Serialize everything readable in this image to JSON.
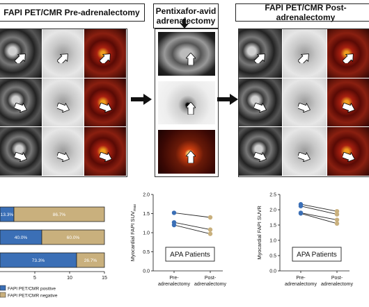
{
  "titles": {
    "pre": "FAPI PET/CMR Pre-adrenalectomy",
    "mid": "Pentixafor-avid adrenalectomy",
    "post": "FAPI PET/CMR Post-adrenalectomy"
  },
  "chart_data": [
    {
      "type": "bar",
      "orientation": "horizontal",
      "stacked": true,
      "xlim": [
        0,
        15
      ],
      "xticks": [
        "5",
        "10",
        "15"
      ],
      "series": [
        {
          "name": "FAPI PET/CMR positive",
          "color": "#3b6fb6",
          "values": [
            2,
            6,
            11
          ],
          "labels": [
            "13.3%",
            "40.0%",
            "73.3%"
          ]
        },
        {
          "name": "FAPI PET/CMR negative",
          "color": "#c9b07d",
          "values": [
            13,
            9,
            4
          ],
          "labels": [
            "86.7%",
            "60.0%",
            "26.7%"
          ]
        }
      ],
      "legend": [
        "FAPI PET/CMR positive",
        "FAPI PET/CMR negative"
      ]
    },
    {
      "type": "line",
      "ylabel": "Myocardial FAPI SUVmax",
      "ylabel_main": "Myocardial FAPI SUV",
      "ylabel_sub": "max",
      "ylim": [
        0.0,
        2.0
      ],
      "yticks": [
        "0.0",
        "0.5",
        "1.0",
        "1.5",
        "2.0"
      ],
      "categories": [
        "Pre-adrenalectomy",
        "Post-adrenalectomy"
      ],
      "cat_labels": [
        [
          "Pre-",
          "adrenalectomy"
        ],
        [
          "Post-",
          "adrenalectomy"
        ]
      ],
      "series": [
        {
          "values": [
            1.52,
            1.4
          ]
        },
        {
          "values": [
            1.27,
            1.08
          ]
        },
        {
          "values": [
            1.2,
            0.97
          ]
        }
      ],
      "pre_color": "#3b6fb6",
      "post_color": "#c9b07d",
      "annotation": "APA Patients"
    },
    {
      "type": "line",
      "ylabel": "Myocardial FAPI SUVR",
      "ylim": [
        0.0,
        2.5
      ],
      "yticks": [
        "0.0",
        "0.5",
        "1.0",
        "1.5",
        "2.0",
        "2.5"
      ],
      "categories": [
        "Pre-adrenalectomy",
        "Post-adrenalectomy"
      ],
      "cat_labels": [
        [
          "Pre-",
          "adrenalectomy"
        ],
        [
          "Post-",
          "adrenalectomy"
        ]
      ],
      "series": [
        {
          "values": [
            2.18,
            1.95
          ]
        },
        {
          "values": [
            2.12,
            1.85
          ]
        },
        {
          "values": [
            1.9,
            1.67
          ]
        },
        {
          "values": [
            1.88,
            1.55
          ]
        }
      ],
      "pre_color": "#3b6fb6",
      "post_color": "#c9b07d",
      "annotation": "APA Patients"
    }
  ]
}
